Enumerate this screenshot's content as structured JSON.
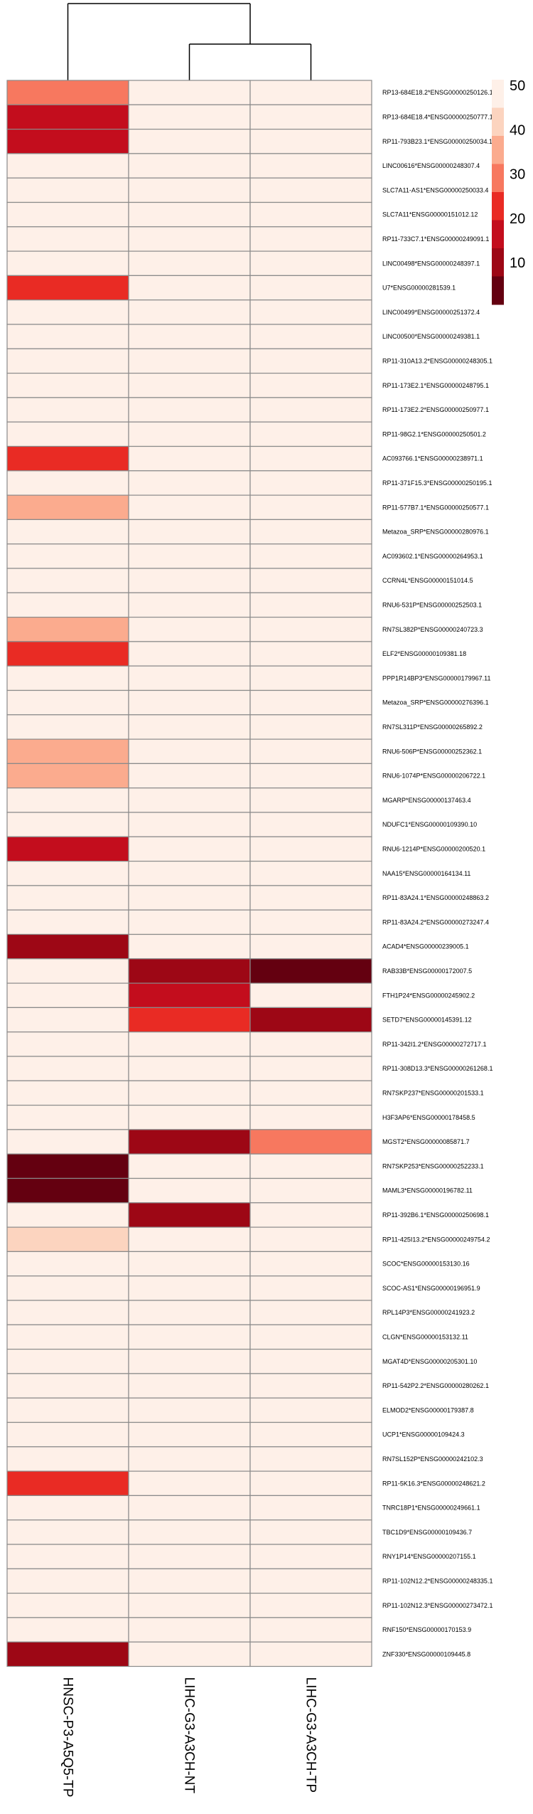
{
  "chart_data": {
    "type": "heatmap",
    "title": "",
    "columns": [
      "HNSC-P3-A5Q5-TP",
      "LIHC-G3-A3CH-NT",
      "LIHC-G3-A3CH-TP"
    ],
    "rows": [
      "RP13-684E18.2*ENSG00000250126.1",
      "RP13-684E18.4*ENSG00000250777.1",
      "RP11-793B23.1*ENSG00000250034.1",
      "LINC00616*ENSG00000248307.4",
      "SLC7A11-AS1*ENSG00000250033.4",
      "SLC7A11*ENSG00000151012.12",
      "RP11-733C7.1*ENSG00000249091.1",
      "LINC00498*ENSG00000248397.1",
      "U7*ENSG00000281539.1",
      "LINC00499*ENSG00000251372.4",
      "LINC00500*ENSG00000249381.1",
      "RP11-310A13.2*ENSG00000248305.1",
      "RP11-173E2.1*ENSG00000248795.1",
      "RP11-173E2.2*ENSG00000250977.1",
      "RP11-98G2.1*ENSG00000250501.2",
      "AC093766.1*ENSG00000238971.1",
      "RP11-371F15.3*ENSG00000250195.1",
      "RP11-577B7.1*ENSG00000250577.1",
      "Metazoa_SRP*ENSG00000280976.1",
      "AC093602.1*ENSG00000264953.1",
      "CCRN4L*ENSG00000151014.5",
      "RNU6-531P*ENSG00000252503.1",
      "RN7SL382P*ENSG00000240723.3",
      "ELF2*ENSG00000109381.18",
      "PPP1R14BP3*ENSG00000179967.11",
      "Metazoa_SRP*ENSG00000276396.1",
      "RN7SL311P*ENSG00000265892.2",
      "RNU6-506P*ENSG00000252362.1",
      "RNU6-1074P*ENSG00000206722.1",
      "MGARP*ENSG00000137463.4",
      "NDUFC1*ENSG00000109390.10",
      "RNU6-1214P*ENSG00000200520.1",
      "NAA15*ENSG00000164134.11",
      "RP11-83A24.1*ENSG00000248863.2",
      "RP11-83A24.2*ENSG00000273247.4",
      "ACAD4*ENSG00000239005.1",
      "RAB33B*ENSG00000172007.5",
      "FTH1P24*ENSG00000245902.2",
      "SETD7*ENSG00000145391.12",
      "RP11-342I1.2*ENSG00000272717.1",
      "RP11-308D13.3*ENSG00000261268.1",
      "RN7SKP237*ENSG00000201533.1",
      "H3F3AP6*ENSG00000178458.5",
      "MGST2*ENSG00000085871.7",
      "RN7SKP253*ENSG00000252233.1",
      "MAML3*ENSG00000196782.11",
      "RP11-392B6.1*ENSG00000250698.1",
      "RP11-425I13.2*ENSG00000249754.2",
      "SCOC*ENSG00000153130.16",
      "SCOC-AS1*ENSG00000196951.9",
      "RPL14P3*ENSG00000241923.2",
      "CLGN*ENSG00000153132.11",
      "MGAT4D*ENSG00000205301.10",
      "RP11-542P2.2*ENSG00000280262.1",
      "ELMOD2*ENSG00000179387.8",
      "UCP1*ENSG00000109424.3",
      "RN7SL152P*ENSG00000242102.3",
      "RP11-5K16.3*ENSG00000248621.2",
      "TNRC18P1*ENSG00000249661.1",
      "TBC1D9*ENSG00000109436.7",
      "RNY1P14*ENSG00000207155.1",
      "RP11-102N12.2*ENSG00000248335.1",
      "RP11-102N12.3*ENSG00000273472.1",
      "RNF150*ENSG00000170153.9",
      "ZNF330*ENSG00000109445.8"
    ],
    "values": [
      [
        30,
        50,
        50
      ],
      [
        13,
        50,
        50
      ],
      [
        17,
        50,
        50
      ],
      [
        50,
        50,
        50
      ],
      [
        50,
        50,
        50
      ],
      [
        50,
        50,
        50
      ],
      [
        50,
        50,
        50
      ],
      [
        50,
        50,
        50
      ],
      [
        19,
        50,
        50
      ],
      [
        50,
        50,
        50
      ],
      [
        50,
        50,
        50
      ],
      [
        50,
        50,
        50
      ],
      [
        50,
        50,
        50
      ],
      [
        50,
        50,
        50
      ],
      [
        50,
        50,
        50
      ],
      [
        19,
        50,
        50
      ],
      [
        50,
        50,
        50
      ],
      [
        36,
        50,
        50
      ],
      [
        50,
        50,
        50
      ],
      [
        50,
        50,
        50
      ],
      [
        50,
        50,
        50
      ],
      [
        50,
        50,
        50
      ],
      [
        36,
        50,
        50
      ],
      [
        19,
        50,
        50
      ],
      [
        50,
        50,
        50
      ],
      [
        50,
        50,
        50
      ],
      [
        50,
        50,
        50
      ],
      [
        36,
        50,
        50
      ],
      [
        36,
        50,
        50
      ],
      [
        50,
        50,
        50
      ],
      [
        50,
        50,
        50
      ],
      [
        13,
        50,
        50
      ],
      [
        50,
        50,
        50
      ],
      [
        50,
        50,
        50
      ],
      [
        50,
        50,
        50
      ],
      [
        9,
        50,
        50
      ],
      [
        50,
        9,
        2
      ],
      [
        50,
        13,
        50
      ],
      [
        50,
        19,
        12
      ],
      [
        50,
        50,
        50
      ],
      [
        50,
        50,
        50
      ],
      [
        50,
        50,
        50
      ],
      [
        50,
        50,
        50
      ],
      [
        50,
        10,
        27
      ],
      [
        2,
        50,
        50
      ],
      [
        2,
        50,
        50
      ],
      [
        50,
        9,
        50
      ],
      [
        42,
        50,
        50
      ],
      [
        50,
        50,
        50
      ],
      [
        50,
        50,
        50
      ],
      [
        50,
        50,
        50
      ],
      [
        50,
        50,
        50
      ],
      [
        50,
        50,
        50
      ],
      [
        50,
        50,
        50
      ],
      [
        50,
        50,
        50
      ],
      [
        50,
        50,
        50
      ],
      [
        50,
        50,
        50
      ],
      [
        19,
        50,
        50
      ],
      [
        50,
        50,
        50
      ],
      [
        50,
        50,
        50
      ],
      [
        50,
        50,
        50
      ],
      [
        50,
        50,
        50
      ],
      [
        50,
        50,
        50
      ],
      [
        50,
        50,
        50
      ],
      [
        9,
        50,
        50
      ]
    ],
    "legend": {
      "ticks": [
        50,
        40,
        30,
        20,
        10
      ],
      "min": 0,
      "max": 50,
      "colors": [
        "#fef0e8",
        "#fcd4bf",
        "#fbab8e",
        "#f7785f",
        "#e92b24",
        "#c30d1d",
        "#9d0715",
        "#640010"
      ]
    },
    "dendrogram": "columns: LIHC-G3-A3CH-NT and LIHC-G3-A3CH-TP join first, then HNSC-P3-A5Q5-TP",
    "grid": true,
    "legend_position": "top-right"
  }
}
